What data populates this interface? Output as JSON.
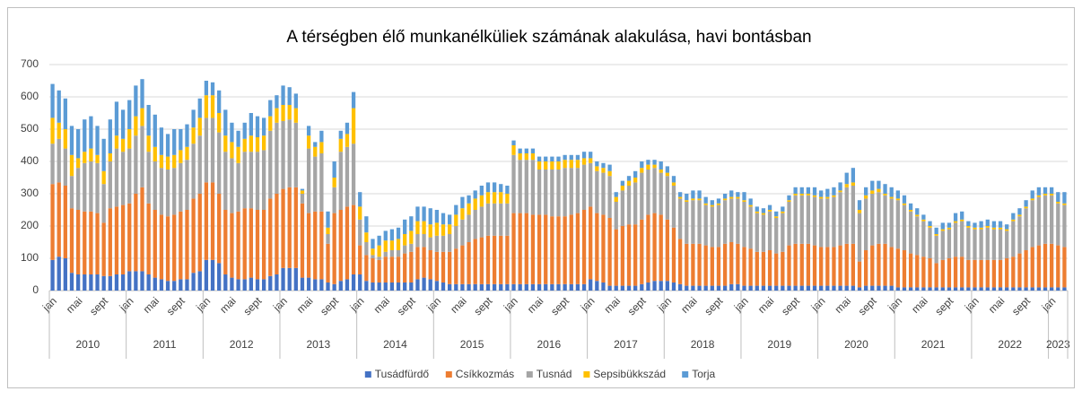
{
  "chart_data": {
    "type": "stacked_bar",
    "title": "A térségben élő munkanélküliek számának alakulása, havi bontásban",
    "categories": [
      "jan",
      null,
      null,
      null,
      "mai",
      null,
      null,
      null,
      "sept",
      null,
      null,
      null,
      "jan",
      null,
      null,
      null,
      "mai",
      null,
      null,
      null,
      "sept",
      null,
      null,
      null,
      "jan",
      null,
      null,
      null,
      "mai",
      null,
      null,
      null,
      "sept",
      null,
      null,
      null,
      "jan",
      null,
      null,
      null,
      "mai",
      null,
      null,
      null,
      "sept",
      null,
      null,
      null,
      "jan",
      null,
      null,
      null,
      "mai",
      null,
      null,
      null,
      "sept",
      null,
      null,
      null,
      "jan",
      null,
      null,
      null,
      "mai",
      null,
      null,
      null,
      "sept",
      null,
      null,
      null,
      "jan",
      null,
      null,
      null,
      "mai",
      null,
      null,
      null,
      "sept",
      null,
      null,
      null,
      "jan",
      null,
      null,
      null,
      "mai",
      null,
      null,
      null,
      "sept",
      null,
      null,
      null,
      "jan",
      null,
      null,
      null,
      "mai",
      null,
      null,
      null,
      "sept",
      null,
      null,
      null,
      "jan",
      null,
      null,
      null,
      "mai",
      null,
      null,
      null,
      "sept",
      null,
      null,
      null,
      "jan",
      null,
      null,
      null,
      "mai",
      null,
      null,
      null,
      "sept",
      null,
      null,
      null,
      "jan",
      null,
      null,
      null,
      "mai",
      null,
      null,
      null,
      "sept",
      null,
      null,
      null,
      "jan",
      null,
      null,
      null,
      "mai",
      null,
      null,
      null,
      "sept",
      null,
      null,
      null,
      "jan",
      null,
      null
    ],
    "year_labels": [
      "2010",
      "2011",
      "2012",
      "2013",
      "2014",
      "2015",
      "2016",
      "2017",
      "2018",
      "2019",
      "2020",
      "2021",
      "2022",
      "2023"
    ],
    "series": [
      {
        "name": "Tusádfürdő",
        "color": "#4472c4",
        "values": [
          95,
          105,
          100,
          55,
          50,
          50,
          50,
          50,
          45,
          45,
          50,
          50,
          60,
          60,
          60,
          50,
          40,
          35,
          30,
          30,
          35,
          35,
          55,
          60,
          95,
          95,
          85,
          50,
          40,
          35,
          35,
          40,
          35,
          35,
          45,
          50,
          70,
          70,
          70,
          40,
          40,
          35,
          35,
          25,
          20,
          30,
          35,
          50,
          50,
          30,
          25,
          25,
          25,
          25,
          25,
          25,
          25,
          35,
          40,
          35,
          30,
          25,
          20,
          20,
          20,
          20,
          20,
          20,
          20,
          20,
          20,
          20,
          20,
          20,
          20,
          20,
          20,
          20,
          20,
          20,
          20,
          20,
          20,
          20,
          35,
          30,
          25,
          15,
          15,
          15,
          15,
          15,
          20,
          25,
          30,
          30,
          30,
          25,
          20,
          15,
          15,
          15,
          15,
          15,
          15,
          15,
          20,
          20,
          15,
          15,
          15,
          15,
          15,
          15,
          15,
          15,
          15,
          15,
          15,
          15,
          15,
          15,
          15,
          15,
          15,
          15,
          10,
          15,
          15,
          15,
          15,
          15,
          10,
          10,
          10,
          10,
          10,
          10,
          10,
          10,
          10,
          10,
          10,
          10,
          10,
          10,
          10,
          10,
          10,
          10,
          10,
          10,
          10,
          10,
          10,
          10,
          10,
          10,
          10
        ]
      },
      {
        "name": "Csíkkozmás",
        "color": "#ed7d31",
        "values": [
          235,
          230,
          225,
          200,
          200,
          195,
          195,
          190,
          165,
          210,
          210,
          215,
          210,
          240,
          260,
          220,
          210,
          200,
          200,
          205,
          210,
          215,
          230,
          240,
          240,
          240,
          215,
          200,
          200,
          210,
          220,
          215,
          215,
          215,
          240,
          250,
          245,
          250,
          250,
          230,
          200,
          210,
          210,
          120,
          220,
          220,
          225,
          215,
          90,
          80,
          75,
          70,
          80,
          80,
          80,
          90,
          95,
          100,
          95,
          90,
          90,
          95,
          100,
          110,
          120,
          130,
          140,
          145,
          150,
          150,
          150,
          150,
          220,
          220,
          220,
          215,
          215,
          215,
          210,
          210,
          210,
          215,
          220,
          230,
          225,
          210,
          210,
          210,
          175,
          185,
          190,
          190,
          200,
          210,
          210,
          205,
          190,
          170,
          140,
          130,
          130,
          130,
          125,
          120,
          120,
          130,
          130,
          125,
          120,
          115,
          105,
          105,
          110,
          100,
          105,
          125,
          130,
          130,
          130,
          125,
          120,
          120,
          120,
          125,
          130,
          130,
          80,
          110,
          125,
          130,
          130,
          120,
          120,
          115,
          105,
          100,
          95,
          90,
          75,
          85,
          90,
          95,
          95,
          85,
          85,
          85,
          85,
          85,
          85,
          90,
          95,
          105,
          115,
          125,
          130,
          135,
          135,
          130,
          125
        ]
      },
      {
        "name": "Tusnád",
        "color": "#a5a5a5",
        "values": [
          125,
          135,
          115,
          100,
          130,
          150,
          155,
          155,
          120,
          145,
          180,
          165,
          170,
          180,
          190,
          160,
          150,
          145,
          145,
          145,
          150,
          155,
          170,
          180,
          200,
          200,
          190,
          180,
          170,
          150,
          175,
          175,
          180,
          185,
          210,
          220,
          210,
          210,
          200,
          30,
          200,
          170,
          180,
          30,
          80,
          180,
          185,
          190,
          80,
          40,
          10,
          10,
          15,
          20,
          20,
          25,
          25,
          40,
          40,
          40,
          50,
          50,
          55,
          70,
          80,
          85,
          90,
          95,
          100,
          100,
          100,
          100,
          180,
          165,
          165,
          170,
          140,
          140,
          145,
          145,
          150,
          145,
          140,
          140,
          135,
          130,
          130,
          130,
          85,
          110,
          120,
          130,
          145,
          140,
          140,
          130,
          135,
          130,
          125,
          130,
          135,
          135,
          125,
          125,
          130,
          135,
          135,
          140,
          140,
          130,
          120,
          115,
          120,
          110,
          120,
          135,
          150,
          150,
          150,
          150,
          150,
          150,
          155,
          165,
          175,
          180,
          150,
          160,
          160,
          160,
          150,
          150,
          150,
          140,
          130,
          120,
          110,
          95,
          85,
          90,
          90,
          105,
          110,
          100,
          95,
          95,
          100,
          95,
          95,
          85,
          110,
          115,
          130,
          145,
          150,
          150,
          150,
          130,
          130
        ]
      },
      {
        "name": "Sepsibükkszád",
        "color": "#ffc000",
        "values": [
          80,
          50,
          60,
          65,
          30,
          35,
          40,
          25,
          40,
          25,
          40,
          40,
          60,
          60,
          55,
          50,
          45,
          40,
          40,
          40,
          40,
          40,
          50,
          55,
          70,
          70,
          60,
          50,
          50,
          50,
          40,
          50,
          45,
          45,
          45,
          45,
          50,
          45,
          45,
          10,
          40,
          30,
          35,
          20,
          30,
          40,
          40,
          110,
          40,
          30,
          20,
          35,
          35,
          30,
          35,
          35,
          40,
          40,
          40,
          40,
          40,
          35,
          30,
          35,
          35,
          35,
          35,
          35,
          35,
          35,
          35,
          30,
          30,
          20,
          20,
          20,
          25,
          25,
          25,
          25,
          25,
          25,
          25,
          20,
          15,
          15,
          15,
          15,
          15,
          15,
          15,
          15,
          15,
          15,
          10,
          10,
          10,
          10,
          5,
          5,
          5,
          5,
          5,
          5,
          5,
          5,
          5,
          5,
          5,
          5,
          5,
          5,
          5,
          5,
          5,
          5,
          5,
          5,
          5,
          5,
          5,
          5,
          5,
          5,
          10,
          10,
          10,
          10,
          10,
          10,
          5,
          5,
          5,
          5,
          5,
          5,
          5,
          5,
          5,
          5,
          5,
          5,
          5,
          5,
          5,
          5,
          5,
          5,
          5,
          5,
          5,
          5,
          5,
          5,
          5,
          5,
          5,
          5,
          5
        ]
      },
      {
        "name": "Torja",
        "color": "#5b9bd5",
        "values": [
          105,
          100,
          95,
          90,
          90,
          100,
          100,
          90,
          100,
          105,
          105,
          90,
          90,
          95,
          90,
          95,
          100,
          85,
          70,
          80,
          65,
          70,
          55,
          60,
          45,
          40,
          70,
          80,
          60,
          50,
          50,
          70,
          65,
          55,
          50,
          40,
          60,
          55,
          45,
          5,
          30,
          15,
          35,
          50,
          50,
          25,
          35,
          50,
          45,
          50,
          30,
          30,
          30,
          35,
          35,
          45,
          45,
          45,
          45,
          50,
          40,
          35,
          30,
          30,
          35,
          25,
          25,
          30,
          30,
          30,
          25,
          25,
          15,
          15,
          15,
          15,
          15,
          15,
          15,
          15,
          15,
          15,
          15,
          20,
          20,
          15,
          15,
          20,
          15,
          15,
          15,
          20,
          20,
          15,
          15,
          25,
          20,
          20,
          15,
          20,
          25,
          25,
          20,
          15,
          15,
          15,
          20,
          15,
          25,
          20,
          15,
          15,
          15,
          15,
          15,
          15,
          20,
          20,
          20,
          25,
          20,
          25,
          25,
          25,
          35,
          45,
          30,
          25,
          30,
          25,
          30,
          30,
          25,
          25,
          20,
          20,
          15,
          15,
          20,
          20,
          15,
          25,
          25,
          15,
          15,
          20,
          20,
          20,
          20,
          15,
          20,
          20,
          20,
          25,
          25,
          20,
          20,
          30,
          35
        ]
      }
    ],
    "ylim": [
      0,
      700
    ],
    "yticks": [
      0,
      100,
      200,
      300,
      400,
      500,
      600,
      700
    ],
    "grid": true,
    "legend": "bottom"
  }
}
